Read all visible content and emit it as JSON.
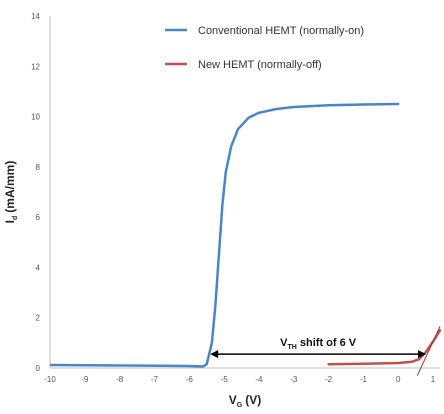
{
  "chart_data": {
    "type": "line",
    "xlabel_main": "V",
    "xlabel_sub": "G",
    "xlabel_unit": "(V)",
    "ylabel_main": "I",
    "ylabel_sub": "d",
    "ylabel_unit": "(mA/mm)",
    "xlim": [
      -10,
      1.2
    ],
    "ylim": [
      0,
      14
    ],
    "x_ticks": [
      -10,
      -9,
      -8,
      -7,
      -6,
      -5,
      -4,
      -3,
      -2,
      -1,
      0,
      1
    ],
    "y_ticks": [
      0,
      2,
      4,
      6,
      8,
      10,
      12,
      14
    ],
    "legend_position": "top-right",
    "series": [
      {
        "name": "Conventional HEMT (normally-on)",
        "color": "#4a86c5",
        "points": [
          [
            -10,
            0.12
          ],
          [
            -8,
            0.1
          ],
          [
            -6,
            0.08
          ],
          [
            -5.6,
            0.06
          ],
          [
            -5.5,
            0.15
          ],
          [
            -5.35,
            1.0
          ],
          [
            -5.25,
            2.5
          ],
          [
            -5.15,
            4.5
          ],
          [
            -5.05,
            6.5
          ],
          [
            -4.95,
            7.8
          ],
          [
            -4.8,
            8.8
          ],
          [
            -4.6,
            9.5
          ],
          [
            -4.3,
            9.95
          ],
          [
            -4.0,
            10.15
          ],
          [
            -3.5,
            10.3
          ],
          [
            -3.0,
            10.38
          ],
          [
            -2.0,
            10.45
          ],
          [
            -1.0,
            10.48
          ],
          [
            0.0,
            10.5
          ]
        ]
      },
      {
        "name": "New HEMT (normally-off)",
        "color": "#c0504d",
        "points": [
          [
            -2,
            0.15
          ],
          [
            -1,
            0.17
          ],
          [
            0,
            0.2
          ],
          [
            0.4,
            0.25
          ],
          [
            0.6,
            0.35
          ],
          [
            0.8,
            0.65
          ],
          [
            1.0,
            1.05
          ],
          [
            1.2,
            1.5
          ]
        ]
      }
    ],
    "annotation": {
      "label_main": "V",
      "label_sub": "TH",
      "label_rest": " shift of 6 V",
      "x_start": -5.4,
      "x_end": 0.8,
      "y": 0.55
    },
    "extrapolation_line": {
      "color": "#8c3a3a",
      "points": [
        [
          0.55,
          -0.3
        ],
        [
          1.2,
          1.65
        ]
      ]
    }
  }
}
